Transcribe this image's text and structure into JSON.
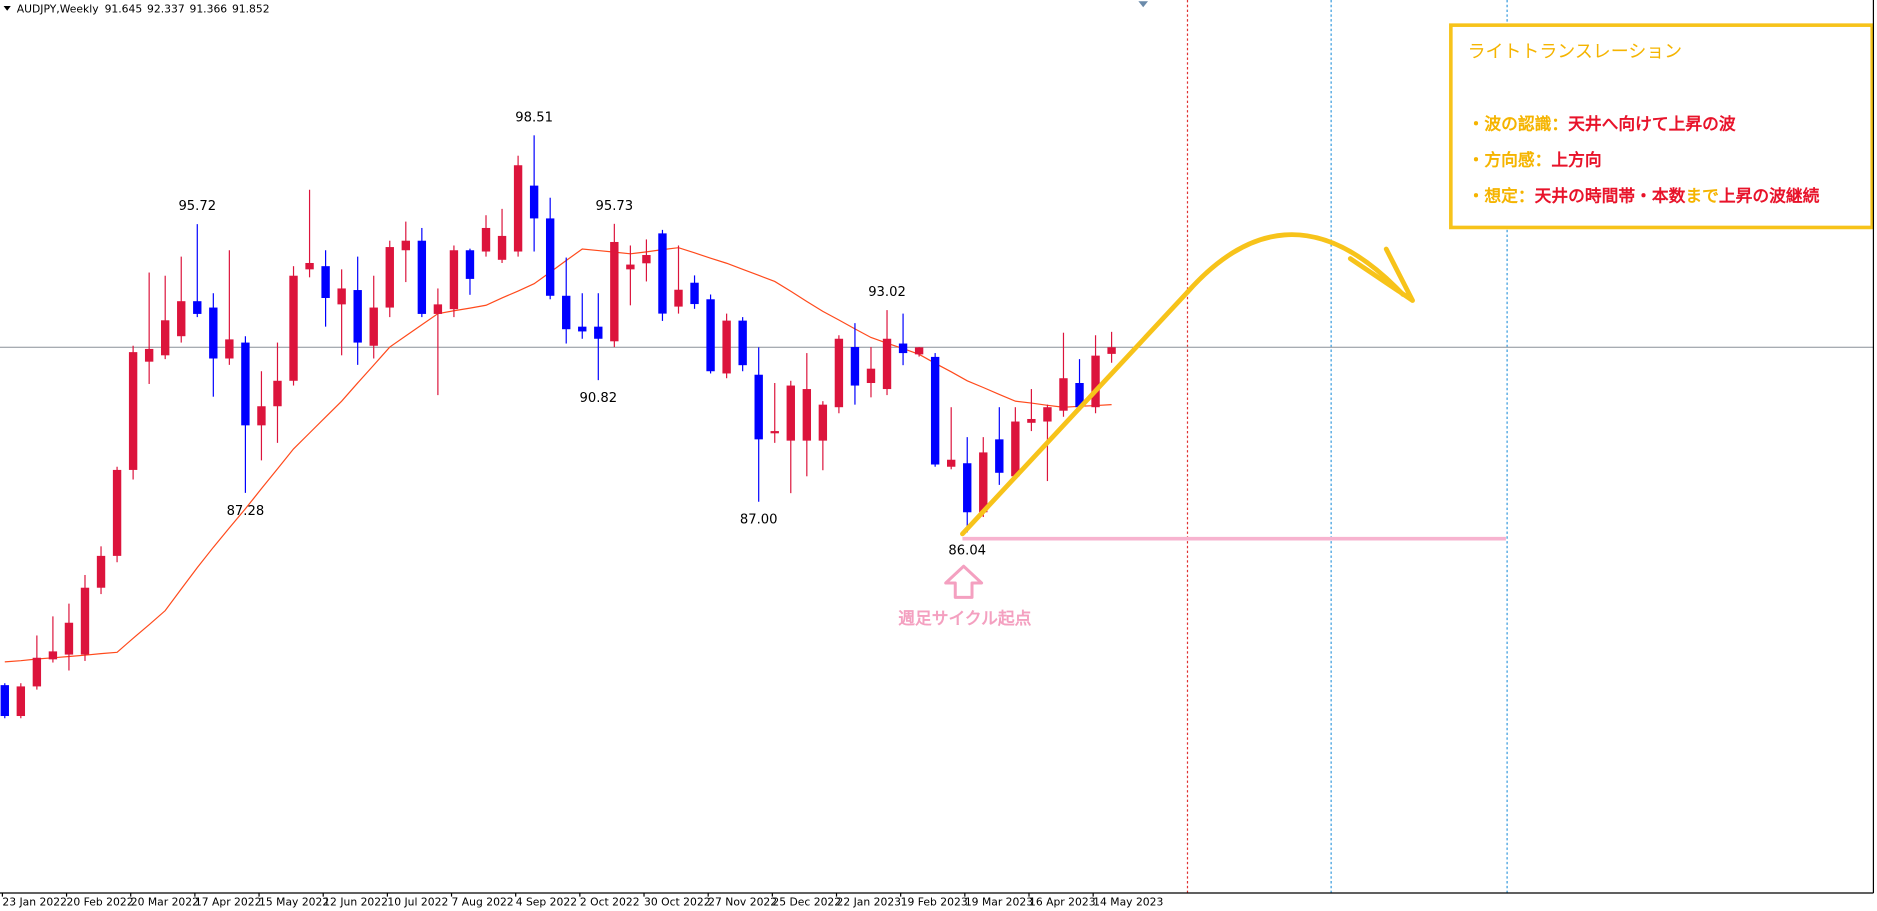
{
  "chart_data": {
    "type": "candlestick",
    "symbol": "AUDJPY,Weekly",
    "ylim": [
      74.71,
      102.76
    ],
    "up_color": "#dc143c",
    "down_color": "#0000ff",
    "categories": [
      "23 Jan 2022",
      null,
      null,
      null,
      "20 Feb 2022",
      null,
      null,
      null,
      "20 Mar 2022",
      null,
      null,
      null,
      "17 Apr 2022",
      null,
      null,
      null,
      "15 May 2022",
      null,
      null,
      null,
      "12 Jun 2022",
      null,
      null,
      null,
      "10 Jul 2022",
      null,
      null,
      null,
      "7 Aug 2022",
      null,
      null,
      null,
      "4 Sep 2022",
      null,
      null,
      null,
      "2 Oct 2022",
      null,
      null,
      null,
      "30 Oct 2022",
      null,
      null,
      null,
      "27 Nov 2022",
      null,
      null,
      null,
      "25 Dec 2022",
      null,
      null,
      null,
      "22 Jan 2023",
      null,
      null,
      null,
      "19 Feb 2023",
      null,
      null,
      null,
      "19 Mar 2023",
      null,
      null,
      null,
      "16 Apr 2023",
      null,
      null,
      null,
      "14 May 2023",
      null
    ],
    "candles": [
      {
        "open": 81.24,
        "high": 81.3,
        "low": 80.2,
        "close": 80.27
      },
      {
        "open": 80.27,
        "high": 81.3,
        "low": 80.2,
        "close": 81.2
      },
      {
        "open": 81.2,
        "high": 82.8,
        "low": 81.1,
        "close": 82.1
      },
      {
        "open": 82.05,
        "high": 83.4,
        "low": 81.95,
        "close": 82.3
      },
      {
        "open": 82.2,
        "high": 83.8,
        "low": 81.7,
        "close": 83.2
      },
      {
        "open": 82.2,
        "high": 84.7,
        "low": 82.0,
        "close": 84.3
      },
      {
        "open": 84.3,
        "high": 85.6,
        "low": 84.1,
        "close": 85.3
      },
      {
        "open": 85.3,
        "high": 88.1,
        "low": 85.1,
        "close": 88.0
      },
      {
        "open": 88.0,
        "high": 91.9,
        "low": 87.7,
        "close": 91.7
      },
      {
        "open": 91.4,
        "high": 94.2,
        "low": 90.7,
        "close": 91.8
      },
      {
        "open": 91.6,
        "high": 94.1,
        "low": 91.48,
        "close": 92.7
      },
      {
        "open": 92.2,
        "high": 94.7,
        "low": 92.0,
        "close": 93.3
      },
      {
        "open": 93.3,
        "high": 95.72,
        "low": 92.8,
        "close": 92.9,
        "high_label": "95.72"
      },
      {
        "open": 93.1,
        "high": 93.55,
        "low": 90.3,
        "close": 91.5
      },
      {
        "open": 91.5,
        "high": 94.9,
        "low": 91.3,
        "close": 92.1
      },
      {
        "open": 92.0,
        "high": 92.2,
        "low": 87.28,
        "close": 89.4,
        "low_label": "87.28"
      },
      {
        "open": 89.4,
        "high": 91.1,
        "low": 88.3,
        "close": 90.0
      },
      {
        "open": 90.0,
        "high": 92.0,
        "low": 88.85,
        "close": 90.8
      },
      {
        "open": 90.8,
        "high": 94.4,
        "low": 90.65,
        "close": 94.1
      },
      {
        "open": 94.3,
        "high": 96.8,
        "low": 94.05,
        "close": 94.5
      },
      {
        "open": 94.4,
        "high": 94.9,
        "low": 92.5,
        "close": 93.4
      },
      {
        "open": 93.2,
        "high": 94.3,
        "low": 91.6,
        "close": 93.7
      },
      {
        "open": 93.65,
        "high": 94.7,
        "low": 91.3,
        "close": 92.0
      },
      {
        "open": 91.9,
        "high": 94.1,
        "low": 91.5,
        "close": 93.1
      },
      {
        "open": 93.1,
        "high": 95.2,
        "low": 92.8,
        "close": 95.0
      },
      {
        "open": 94.9,
        "high": 95.8,
        "low": 93.9,
        "close": 95.2
      },
      {
        "open": 95.2,
        "high": 95.6,
        "low": 92.8,
        "close": 92.9
      },
      {
        "open": 92.9,
        "high": 93.7,
        "low": 90.35,
        "close": 93.2
      },
      {
        "open": 93.05,
        "high": 95.05,
        "low": 92.8,
        "close": 94.9
      },
      {
        "open": 94.9,
        "high": 94.95,
        "low": 93.5,
        "close": 94.0
      },
      {
        "open": 94.86,
        "high": 96.0,
        "low": 94.7,
        "close": 95.6
      },
      {
        "open": 94.6,
        "high": 96.2,
        "low": 94.5,
        "close": 95.35
      },
      {
        "open": 94.86,
        "high": 97.87,
        "low": 94.7,
        "close": 97.57
      },
      {
        "open": 96.93,
        "high": 98.51,
        "low": 94.86,
        "close": 95.9,
        "high_label": "98.51"
      },
      {
        "open": 95.9,
        "high": 96.55,
        "low": 93.36,
        "close": 93.47
      },
      {
        "open": 93.47,
        "high": 94.67,
        "low": 91.97,
        "close": 92.42
      },
      {
        "open": 92.5,
        "high": 93.55,
        "low": 92.12,
        "close": 92.35
      },
      {
        "open": 92.5,
        "high": 93.55,
        "low": 90.82,
        "close": 92.12,
        "low_label": "90.82"
      },
      {
        "open": 92.04,
        "high": 95.73,
        "low": 91.86,
        "close": 95.16,
        "high_label": "95.73"
      },
      {
        "open": 94.3,
        "high": 95.05,
        "low": 93.17,
        "close": 94.45
      },
      {
        "open": 94.49,
        "high": 95.24,
        "low": 93.92,
        "close": 94.75
      },
      {
        "open": 95.43,
        "high": 95.54,
        "low": 92.68,
        "close": 92.91
      },
      {
        "open": 93.13,
        "high": 95.05,
        "low": 92.91,
        "close": 93.66
      },
      {
        "open": 93.88,
        "high": 94.11,
        "low": 93.06,
        "close": 93.21
      },
      {
        "open": 93.36,
        "high": 93.51,
        "low": 91.03,
        "close": 91.1
      },
      {
        "open": 91.03,
        "high": 92.91,
        "low": 90.88,
        "close": 92.69
      },
      {
        "open": 92.69,
        "high": 92.8,
        "low": 91.1,
        "close": 91.29
      },
      {
        "open": 90.99,
        "high": 91.85,
        "low": 87,
        "close": 88.96,
        "low_label": "87.00"
      },
      {
        "open": 89.15,
        "high": 90.73,
        "low": 88.85,
        "close": 89.22
      },
      {
        "open": 88.92,
        "high": 90.8,
        "low": 87.27,
        "close": 90.65
      },
      {
        "open": 88.92,
        "high": 91.67,
        "low": 87.8,
        "close": 90.54
      },
      {
        "open": 88.92,
        "high": 90.16,
        "low": 87.99,
        "close": 90.05
      },
      {
        "open": 89.97,
        "high": 92.23,
        "low": 89.78,
        "close": 92.12
      },
      {
        "open": 91.86,
        "high": 92.61,
        "low": 90.05,
        "close": 90.65
      },
      {
        "open": 90.73,
        "high": 91.86,
        "low": 90.28,
        "close": 91.18
      },
      {
        "open": 90.54,
        "high": 93.02,
        "low": 90.35,
        "close": 92.12,
        "high_label": "93.02"
      },
      {
        "open": 91.97,
        "high": 92.91,
        "low": 91.29,
        "close": 91.67
      },
      {
        "open": 91.63,
        "high": 91.86,
        "low": 91.56,
        "close": 91.85
      },
      {
        "open": 91.55,
        "high": 91.67,
        "low": 88.1,
        "close": 88.17
      },
      {
        "open": 88.1,
        "high": 89.97,
        "low": 88.02,
        "close": 88.32
      },
      {
        "open": 88.21,
        "high": 89.03,
        "low": 86.04,
        "close": 86.67,
        "low_label": "86.04"
      },
      {
        "open": 86.67,
        "high": 89.03,
        "low": 86.52,
        "close": 88.55
      },
      {
        "open": 88.96,
        "high": 89.97,
        "low": 87.53,
        "close": 87.91
      },
      {
        "open": 87.8,
        "high": 89.97,
        "low": 87.72,
        "close": 89.52
      },
      {
        "open": 89.48,
        "high": 90.54,
        "low": 89.22,
        "close": 89.6
      },
      {
        "open": 89.52,
        "high": 90.05,
        "low": 87.65,
        "close": 89.97
      },
      {
        "open": 89.86,
        "high": 92.31,
        "low": 89.67,
        "close": 90.88
      },
      {
        "open": 90.73,
        "high": 91.48,
        "low": 89.86,
        "close": 89.97
      },
      {
        "open": 89.97,
        "high": 92.23,
        "low": 89.78,
        "close": 91.59
      },
      {
        "open": 91.645,
        "high": 92.337,
        "low": 91.366,
        "close": 91.852
      }
    ],
    "moving_average": {
      "color": "#ff4a1c",
      "values": [
        81.97,
        82.01,
        82.06,
        82.1,
        82.14,
        82.18,
        82.23,
        82.27,
        82.71,
        83.14,
        83.58,
        84.26,
        84.93,
        85.57,
        86.18,
        86.78,
        87.41,
        88.03,
        88.66,
        89.16,
        89.66,
        90.16,
        90.73,
        91.29,
        91.86,
        92.21,
        92.56,
        92.91,
        93.0,
        93.08,
        93.17,
        93.4,
        93.62,
        93.85,
        94.21,
        94.58,
        94.94,
        94.89,
        94.84,
        94.79,
        94.85,
        94.92,
        94.98,
        94.82,
        94.65,
        94.49,
        94.3,
        94.11,
        93.92,
        93.61,
        93.29,
        92.98,
        92.71,
        92.43,
        92.16,
        91.98,
        91.81,
        91.63,
        91.35,
        91.08,
        90.8,
        90.59,
        90.37,
        90.16,
        90.1,
        90.03,
        89.97,
        90.0,
        90.02,
        90.05
      ]
    },
    "cycle_note": "週足サイクル起点",
    "info_box": {
      "title": "ライトトランスレーション",
      "lines": [
        [
          {
            "text": "・波の認識：",
            "color": "#f5b400"
          },
          {
            "text": "天井へ向けて上昇の波",
            "color": "#e8132a"
          }
        ],
        [
          {
            "text": "・方向感：",
            "color": "#f5b400"
          },
          {
            "text": "上方向",
            "color": "#e8132a"
          }
        ],
        [
          {
            "text": "・想定：",
            "color": "#f5b400"
          },
          {
            "text": "天井の時間帯・本数",
            "color": "#e8132a"
          },
          {
            "text": "まで",
            "color": "#f5b400"
          },
          {
            "text": "上昇の波継続",
            "color": "#e8132a"
          }
        ]
      ]
    }
  }
}
